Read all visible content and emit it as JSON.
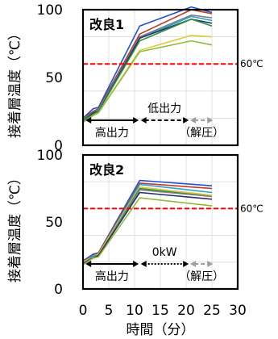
{
  "chart_data": [
    {
      "type": "line",
      "title": "改良1",
      "ylabel": "接着層温度（℃）",
      "xlim": [
        0,
        30
      ],
      "ylim": [
        0,
        100
      ],
      "yticks": [
        0,
        50,
        100
      ],
      "grid": true,
      "reference": {
        "y": 60,
        "label": "60℃",
        "color": "#ff0000"
      },
      "annotations": {
        "phase1": "高出力",
        "phase2": "低出力",
        "phase3": "（解圧）"
      },
      "colors": [
        "#1f4fd6",
        "#c0392b",
        "#7f7f7f",
        "#2aa0c8",
        "#223366",
        "#2f8f3f",
        "#e0c83a",
        "#8fbc3a"
      ],
      "series": [
        {
          "x": [
            0,
            2,
            3,
            11,
            21,
            25
          ],
          "y": [
            20,
            27,
            28,
            88,
            102,
            98
          ]
        },
        {
          "x": [
            0,
            2,
            3,
            11,
            21,
            25
          ],
          "y": [
            20,
            25,
            27,
            82,
            100,
            97
          ]
        },
        {
          "x": [
            0,
            2,
            3,
            11,
            21,
            25
          ],
          "y": [
            19,
            24,
            26,
            80,
            96,
            94
          ]
        },
        {
          "x": [
            0,
            2,
            3,
            11,
            21,
            25
          ],
          "y": [
            19,
            24,
            26,
            79,
            95,
            92
          ]
        },
        {
          "x": [
            0,
            2,
            3,
            11,
            21,
            25
          ],
          "y": [
            18,
            24,
            25,
            79,
            93,
            90
          ]
        },
        {
          "x": [
            0,
            2,
            3,
            11,
            21,
            25
          ],
          "y": [
            18,
            23,
            25,
            77,
            93,
            88
          ]
        },
        {
          "x": [
            0,
            2,
            3,
            11,
            21,
            25
          ],
          "y": [
            17,
            22,
            24,
            70,
            81,
            80
          ]
        },
        {
          "x": [
            0,
            2,
            3,
            11,
            21,
            25
          ],
          "y": [
            17,
            22,
            24,
            69,
            77,
            74
          ]
        }
      ]
    },
    {
      "type": "line",
      "title": "改良2",
      "ylabel": "接着層温度（℃）",
      "xlabel": "時間（分）",
      "xlim": [
        0,
        30
      ],
      "xticks": [
        0,
        5,
        10,
        15,
        20,
        25,
        30
      ],
      "ylim": [
        0,
        100
      ],
      "yticks": [
        0,
        50,
        100
      ],
      "grid": true,
      "reference": {
        "y": 60,
        "label": "60℃",
        "color": "#ff0000"
      },
      "annotations": {
        "phase1": "高出力",
        "phase2": "0kW",
        "phase3": "（解圧）"
      },
      "colors": [
        "#1f4fd6",
        "#c0392b",
        "#2aa0c8",
        "#e0c83a",
        "#2f8f3f",
        "#7f7f7f",
        "#223366",
        "#8fbc3a"
      ],
      "series": [
        {
          "x": [
            0,
            2,
            3,
            11,
            25
          ],
          "y": [
            21,
            26,
            27,
            81,
            77
          ]
        },
        {
          "x": [
            0,
            2,
            3,
            11,
            25
          ],
          "y": [
            21,
            25,
            27,
            79,
            75
          ]
        },
        {
          "x": [
            0,
            2,
            3,
            11,
            25
          ],
          "y": [
            20,
            25,
            26,
            78,
            72
          ]
        },
        {
          "x": [
            0,
            2,
            3,
            11,
            25
          ],
          "y": [
            20,
            24,
            26,
            76,
            70
          ]
        },
        {
          "x": [
            0,
            2,
            3,
            11,
            25
          ],
          "y": [
            19,
            24,
            25,
            75,
            69
          ]
        },
        {
          "x": [
            0,
            2,
            3,
            11,
            25
          ],
          "y": [
            19,
            24,
            25,
            74,
            69
          ]
        },
        {
          "x": [
            0,
            2,
            3,
            11,
            25
          ],
          "y": [
            19,
            23,
            25,
            72,
            67
          ]
        },
        {
          "x": [
            0,
            2,
            3,
            11,
            25
          ],
          "y": [
            18,
            23,
            24,
            68,
            62
          ]
        }
      ]
    }
  ]
}
